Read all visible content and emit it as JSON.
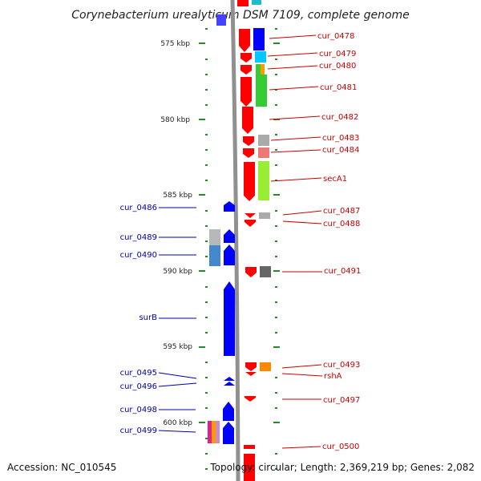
{
  "header": {
    "title": "Corynebacterium urealyticum DSM 7109, complete genome"
  },
  "scale": {
    "ticks": [
      {
        "label": "575 kbp",
        "kb": 575
      },
      {
        "label": "580 kbp",
        "kb": 580
      },
      {
        "label": "585 kbp",
        "kb": 585
      },
      {
        "label": "590 kbp",
        "kb": 590
      },
      {
        "label": "595 kbp",
        "kb": 595
      },
      {
        "label": "600 kbp",
        "kb": 600
      }
    ]
  },
  "genes_right": [
    {
      "name": "cur_0478",
      "color": "#cc0000"
    },
    {
      "name": "cur_0479",
      "color": "#cc0000"
    },
    {
      "name": "cur_0480",
      "color": "#cc0000"
    },
    {
      "name": "cur_0481",
      "color": "#cc0000"
    },
    {
      "name": "cur_0482",
      "color": "#cc0000"
    },
    {
      "name": "cur_0483",
      "color": "#cc0000"
    },
    {
      "name": "cur_0484",
      "color": "#cc0000"
    },
    {
      "name": "secA1",
      "color": "#cc0000"
    },
    {
      "name": "cur_0487",
      "color": "#cc0000"
    },
    {
      "name": "cur_0488",
      "color": "#cc0000"
    },
    {
      "name": "cur_0491",
      "color": "#cc0000"
    },
    {
      "name": "cur_0493",
      "color": "#cc0000"
    },
    {
      "name": "rshA",
      "color": "#cc0000"
    },
    {
      "name": "cur_0497",
      "color": "#cc0000"
    },
    {
      "name": "cur_0500",
      "color": "#cc0000"
    }
  ],
  "genes_left": [
    {
      "name": "cur_0486",
      "color": "#0000aa"
    },
    {
      "name": "cur_0489",
      "color": "#0000aa"
    },
    {
      "name": "cur_0490",
      "color": "#0000aa"
    },
    {
      "name": "surB",
      "color": "#0000aa"
    },
    {
      "name": "cur_0495",
      "color": "#0000aa"
    },
    {
      "name": "cur_0496",
      "color": "#0000aa"
    },
    {
      "name": "cur_0498",
      "color": "#0000aa"
    },
    {
      "name": "cur_0499",
      "color": "#0000aa"
    }
  ],
  "footer": {
    "accession": "Accession: NC_010545",
    "summary": "Topology: circular; Length: 2,369,219 bp; Genes: 2,082"
  },
  "colors": {
    "forward_strand": "#ff0000",
    "reverse_strand": "#0000ff",
    "backbone": "#909090",
    "tick": "#2a8a2a"
  }
}
